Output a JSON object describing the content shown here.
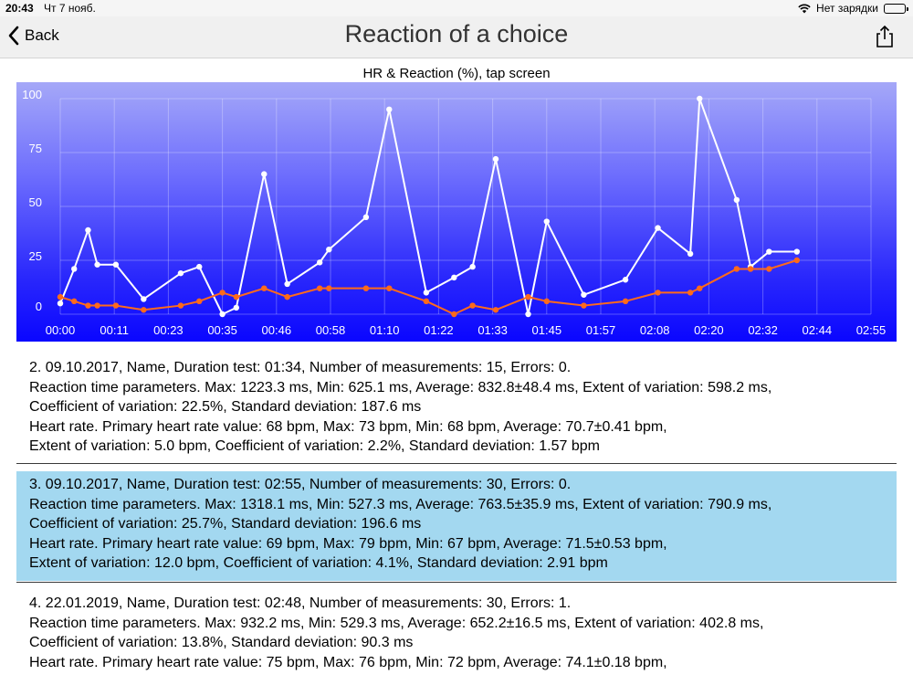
{
  "status_bar": {
    "time": "20:43",
    "date": "Чт 7 нояб.",
    "battery_text": "Нет зарядки"
  },
  "nav": {
    "back_label": "Back",
    "title": "Reaction of a choice"
  },
  "chart_data": {
    "type": "line",
    "title": "HR & Reaction (%), tap screen",
    "xlabel": "",
    "ylabel": "",
    "ylim": [
      0,
      100
    ],
    "yticks": [
      0,
      25,
      50,
      75,
      100
    ],
    "xlim": [
      0,
      175
    ],
    "xtick_labels": [
      "00:00",
      "00:11",
      "00:23",
      "00:35",
      "00:46",
      "00:58",
      "01:10",
      "01:22",
      "01:33",
      "01:45",
      "01:57",
      "02:08",
      "02:20",
      "02:32",
      "02:44",
      "02:55"
    ],
    "grid": true,
    "series": [
      {
        "color": "#ffffff",
        "x": [
          0,
          3,
          6,
          8,
          12,
          18,
          26,
          30,
          35,
          38,
          44,
          49,
          56,
          58,
          66,
          71,
          79,
          85,
          89,
          94,
          101,
          105,
          113,
          122,
          129,
          136,
          138,
          146,
          149,
          153,
          159
        ],
        "y": [
          5,
          21,
          39,
          23,
          23,
          7,
          19,
          22,
          0,
          3,
          65,
          14,
          24,
          30,
          45,
          95,
          10,
          17,
          22,
          72,
          0,
          43,
          9,
          16,
          40,
          28,
          100,
          53,
          22,
          29,
          29
        ]
      },
      {
        "color": "#ff6a1a",
        "x": [
          0,
          3,
          6,
          8,
          12,
          18,
          26,
          30,
          35,
          38,
          44,
          49,
          56,
          58,
          66,
          71,
          79,
          85,
          89,
          94,
          101,
          105,
          113,
          122,
          129,
          136,
          138,
          146,
          149,
          153,
          159
        ],
        "y": [
          8,
          6,
          4,
          4,
          4,
          2,
          4,
          6,
          10,
          8,
          12,
          8,
          12,
          12,
          12,
          12,
          6,
          0,
          4,
          2,
          8,
          6,
          4,
          6,
          10,
          10,
          12,
          21,
          21,
          21,
          25
        ]
      }
    ]
  },
  "entries": [
    {
      "lines": [
        "2. 09.10.2017, Name, Duration test: 01:34, Number of measurements: 15, Errors: 0.",
        "Reaction time parameters. Max: 1223.3 ms, Min: 625.1 ms, Average: 832.8±48.4 ms, Extent of variation: 598.2 ms,",
        "Coefficient of variation: 22.5%, Standard deviation: 187.6 ms",
        "Heart rate. Primary heart rate value: 68 bpm, Max: 73 bpm, Min: 68 bpm, Average: 70.7±0.41 bpm,",
        "Extent of variation: 5.0 bpm, Coefficient of variation: 2.2%, Standard deviation: 1.57 bpm"
      ]
    },
    {
      "lines": [
        "3. 09.10.2017, Name, Duration test: 02:55, Number of measurements: 30, Errors: 0.",
        "Reaction time parameters. Max: 1318.1 ms, Min: 527.3 ms, Average: 763.5±35.9 ms, Extent of variation: 790.9 ms,",
        "Coefficient of variation: 25.7%, Standard deviation: 196.6 ms",
        "Heart rate. Primary heart rate value: 69 bpm, Max: 79 bpm, Min: 67 bpm, Average: 71.5±0.53 bpm,",
        "Extent of variation: 12.0 bpm, Coefficient of variation: 4.1%, Standard deviation: 2.91 bpm"
      ]
    },
    {
      "lines": [
        "4. 22.01.2019, Name, Duration test: 02:48, Number of measurements: 30, Errors: 1.",
        "Reaction time parameters. Max: 932.2 ms, Min: 529.3 ms, Average: 652.2±16.5 ms, Extent of variation: 402.8 ms,",
        "Coefficient of variation: 13.8%, Standard deviation: 90.3 ms",
        "Heart rate. Primary heart rate value: 75 bpm, Max: 76 bpm, Min: 72 bpm, Average: 74.1±0.18 bpm,"
      ]
    }
  ]
}
